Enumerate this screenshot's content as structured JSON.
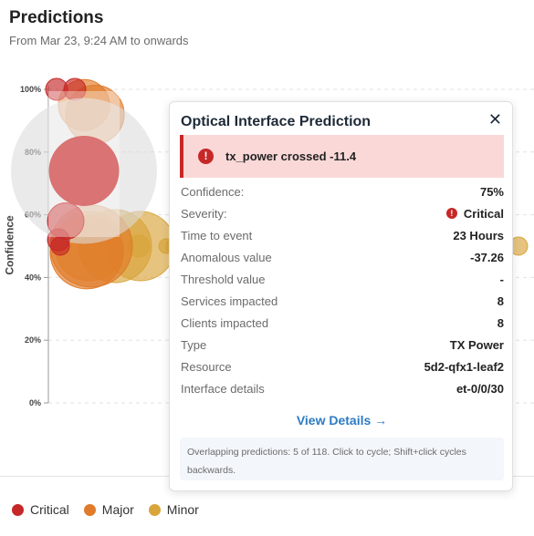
{
  "header": {
    "title": "Predictions",
    "subtitle": "From Mar 23, 9:24 AM to onwards"
  },
  "chart_data": {
    "type": "scatter",
    "ylabel": "Confidence",
    "y_ticks": [
      "0%",
      "20%",
      "40%",
      "60%",
      "80%",
      "100%"
    ],
    "ylim": [
      0,
      100
    ],
    "grid": true,
    "legend_position": "bottom-left",
    "series": [
      {
        "name": "Critical",
        "color": "#c62828",
        "values": [
          100,
          100,
          74,
          58,
          52,
          50
        ]
      },
      {
        "name": "Major",
        "color": "#e07b2a",
        "values": [
          95,
          92,
          50,
          48
        ]
      },
      {
        "name": "Minor",
        "color": "#d9a53a",
        "values": [
          50,
          50,
          50,
          50,
          50,
          50,
          50
        ]
      }
    ]
  },
  "tooltip": {
    "title": "Optical Interface Prediction",
    "close_symbol": "✕",
    "alert_text": "tx_power crossed -11.4",
    "rows": [
      {
        "label": "Confidence:",
        "value": "75%"
      },
      {
        "label": "Severity:",
        "value": "Critical"
      },
      {
        "label": "Time to event",
        "value": "23 Hours"
      },
      {
        "label": "Anomalous value",
        "value": "-37.26"
      },
      {
        "label": "Threshold value",
        "value": "-"
      },
      {
        "label": "Services impacted",
        "value": "8"
      },
      {
        "label": "Clients impacted",
        "value": "8"
      },
      {
        "label": "Type",
        "value": "TX Power"
      },
      {
        "label": "Resource",
        "value": "5d2-qfx1-leaf2"
      },
      {
        "label": "Interface details",
        "value": "et-0/0/30"
      }
    ],
    "view_details": "View Details →",
    "note": "Overlapping predictions: 5 of 118. Click to cycle; Shift+click cycles backwards."
  },
  "legend": [
    {
      "label": "Critical",
      "color": "#c62828"
    },
    {
      "label": "Major",
      "color": "#e07b2a"
    },
    {
      "label": "Minor",
      "color": "#d9a53a"
    }
  ]
}
